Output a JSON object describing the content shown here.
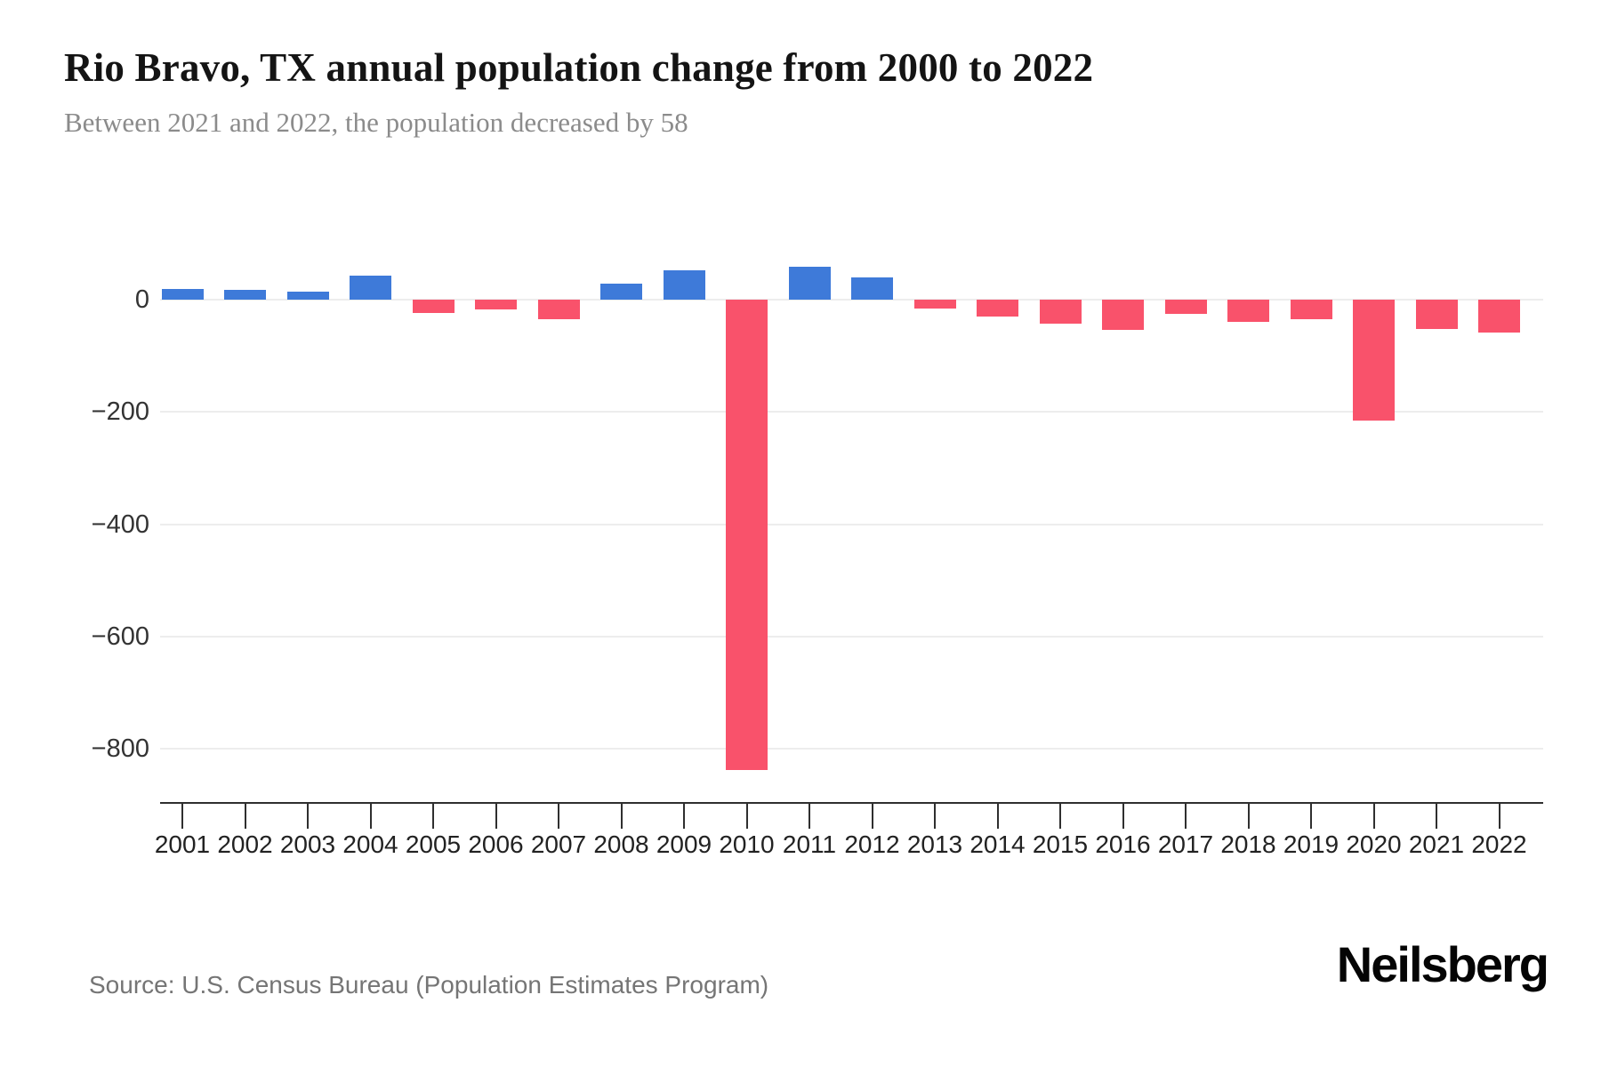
{
  "header": {
    "title": "Rio Bravo, TX annual population change from 2000 to 2022",
    "subtitle": "Between 2021 and 2022, the population decreased by 58"
  },
  "chart_data": {
    "type": "bar",
    "title": "Rio Bravo, TX annual population change from 2000 to 2022",
    "xlabel": "",
    "ylabel": "",
    "categories": [
      "2001",
      "2002",
      "2003",
      "2004",
      "2005",
      "2006",
      "2007",
      "2008",
      "2009",
      "2010",
      "2011",
      "2012",
      "2013",
      "2014",
      "2015",
      "2016",
      "2017",
      "2018",
      "2019",
      "2020",
      "2021",
      "2022"
    ],
    "values": [
      19,
      17,
      14,
      42,
      -24,
      -18,
      -35,
      29,
      52,
      -837,
      58,
      39,
      -16,
      -30,
      -43,
      -54,
      -26,
      -40,
      -35,
      -216,
      -53,
      -58
    ],
    "yticks": [
      0,
      -200,
      -400,
      -600,
      -800
    ],
    "ytick_labels": [
      "0",
      "−200",
      "−400",
      "−600",
      "−800"
    ],
    "ylim": [
      -880,
      80
    ],
    "grid": true,
    "legend_position": "none",
    "positive_color": "#3E7AD9",
    "negative_color": "#F9526B"
  },
  "footer": {
    "source": "Source: U.S. Census Bureau (Population Estimates Program)",
    "brand": "Neilsberg"
  }
}
